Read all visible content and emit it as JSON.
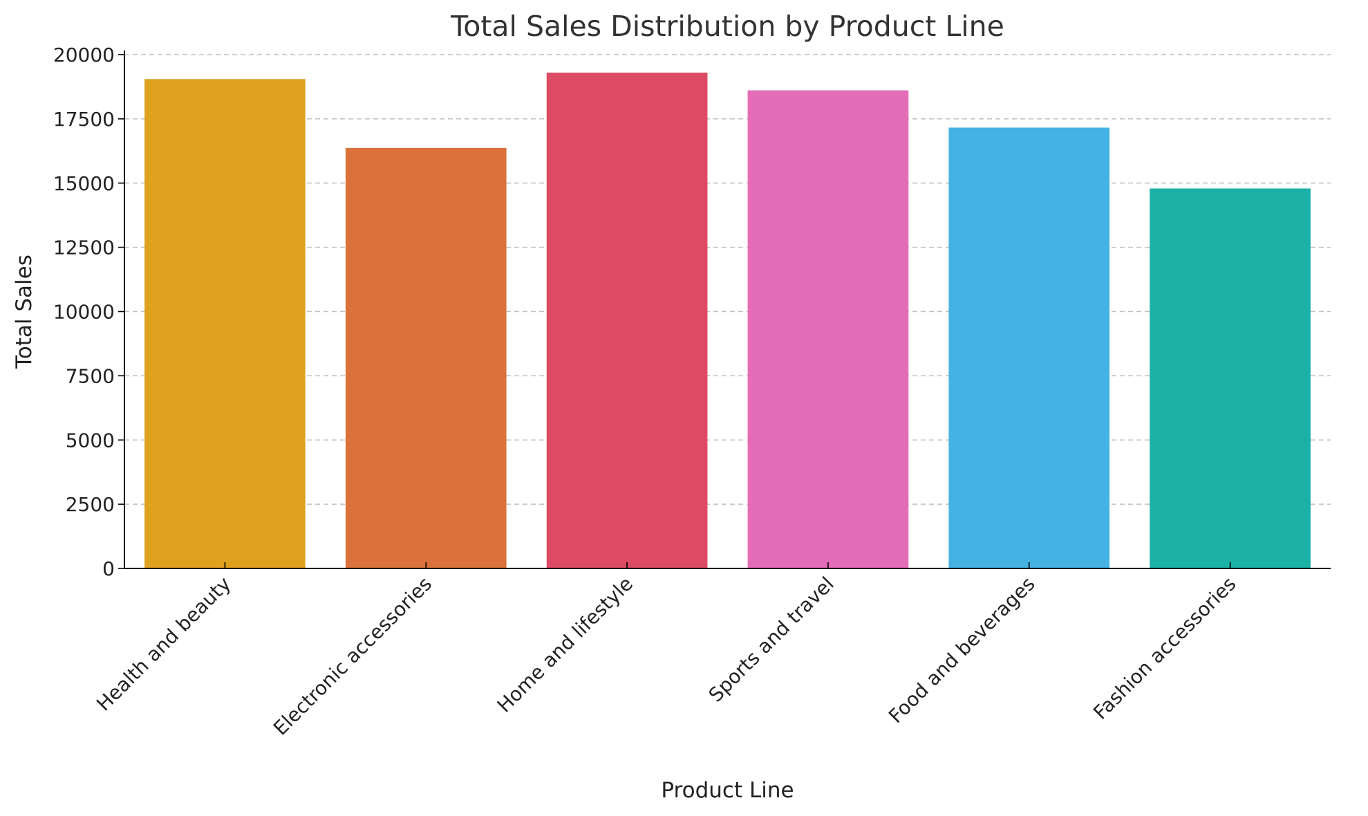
{
  "chart_data": {
    "type": "bar",
    "title": "Total Sales Distribution by Product Line",
    "xlabel": "Product Line",
    "ylabel": "Total Sales",
    "ylim": [
      0,
      20000
    ],
    "yticks": [
      0,
      2500,
      5000,
      7500,
      10000,
      12500,
      15000,
      17500,
      20000
    ],
    "grid": "y-dashed",
    "categories": [
      "Health and beauty",
      "Electronic accessories",
      "Home and lifestyle",
      "Sports and travel",
      "Food and beverages",
      "Fashion accessories"
    ],
    "values": [
      19050,
      16370,
      19300,
      18610,
      17160,
      14790
    ],
    "colors": [
      "#E0A21E",
      "#DB723C",
      "#DC4A64",
      "#E46DB8",
      "#44B2E2",
      "#1BB1A6"
    ]
  }
}
